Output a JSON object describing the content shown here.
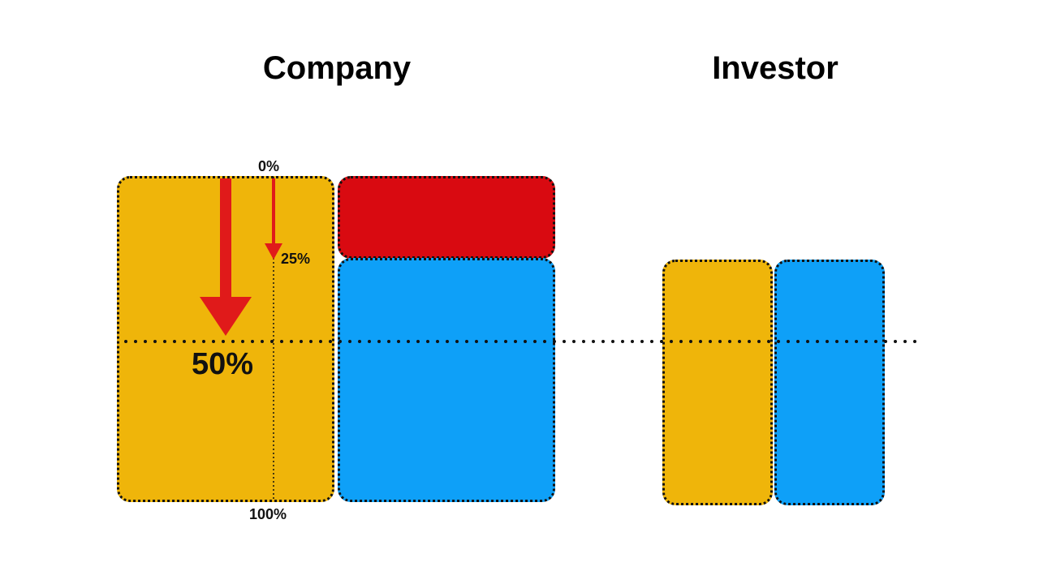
{
  "titles": {
    "company": "Company",
    "investor": "Investor"
  },
  "labels": {
    "zero": "0%",
    "quarter": "25%",
    "half": "50%",
    "full": "100%"
  },
  "colors": {
    "yellow": "#EFB50A",
    "red": "#D90A11",
    "blue": "#0EA0F8",
    "arrow": "#E01A1A",
    "outline": "#111111"
  }
}
